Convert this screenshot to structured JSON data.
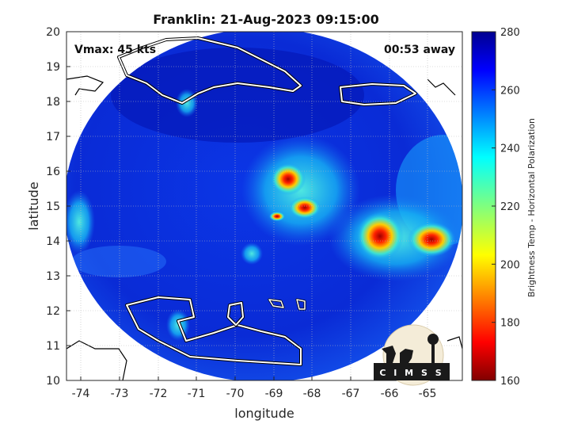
{
  "title": "Franklin: 21-Aug-2023 09:15:00",
  "vmax_label": "Vmax: 45 kts",
  "time_away": "00:53 away",
  "x_axis": {
    "label": "longitude",
    "ticks": [
      "-74",
      "-73",
      "-72",
      "-71",
      "-70",
      "-69",
      "-68",
      "-67",
      "-66",
      "-65"
    ]
  },
  "y_axis": {
    "label": "latitude",
    "ticks": [
      "10",
      "11",
      "12",
      "13",
      "14",
      "15",
      "16",
      "17",
      "18",
      "19",
      "20"
    ]
  },
  "colorbar": {
    "label": "Brightness Temp - Horizontal Polarization",
    "min": 160,
    "max": 280,
    "ticks": [
      "160",
      "180",
      "200",
      "220",
      "240",
      "260",
      "280"
    ],
    "colormap": "jet"
  },
  "logo": {
    "text": "C I M S S"
  },
  "chart_data": {
    "type": "heatmap",
    "title": "Franklin: 21-Aug-2023 09:15:00",
    "xlabel": "longitude",
    "ylabel": "latitude",
    "xlim": [
      -74.5,
      -64.3
    ],
    "ylim": [
      10,
      20
    ],
    "colorbar_range": [
      160,
      280
    ],
    "background_value": 268,
    "swath": {
      "shape": "circle",
      "center_lon": -69.3,
      "center_lat": 14.75,
      "radius_deg_lon": 5.0
    },
    "features": [
      {
        "lon": -68.8,
        "lat": 15.3,
        "min_value": 180
      },
      {
        "lon": -66.2,
        "lat": 14.0,
        "min_value": 185
      },
      {
        "lon": -64.9,
        "lat": 14.0,
        "min_value": 185
      }
    ]
  }
}
